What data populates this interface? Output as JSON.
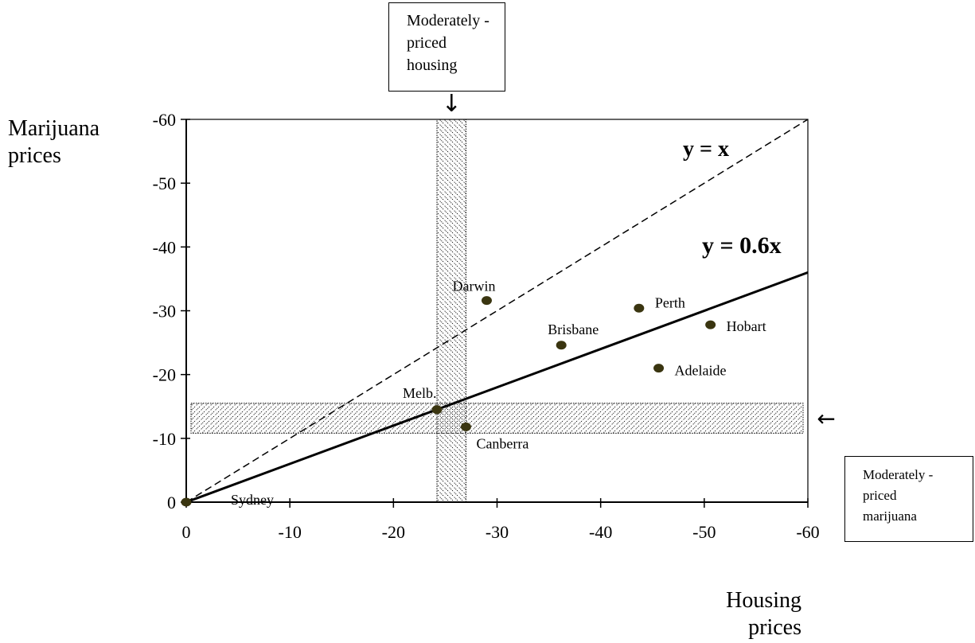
{
  "chart_data": {
    "type": "scatter",
    "y_axis_title": "Marijuana\nprices",
    "x_axis_title": "Housing\nprices",
    "xlim": [
      0,
      -60
    ],
    "ylim": [
      0,
      -60
    ],
    "x_ticks": [
      0,
      -10,
      -20,
      -30,
      -40,
      -50,
      -60
    ],
    "y_ticks": [
      0,
      -10,
      -20,
      -30,
      -40,
      -50,
      -60
    ],
    "x_tick_labels": [
      "0",
      "-10",
      "-20",
      "-30",
      "-40",
      "-50",
      "-60"
    ],
    "y_tick_labels": [
      "0",
      "-10",
      "-20",
      "-30",
      "-40",
      "-50",
      "-60"
    ],
    "points": [
      {
        "label": "Sydney",
        "x": 0,
        "y": 0
      },
      {
        "label": "Melb.",
        "x": -24.2,
        "y": -14.5
      },
      {
        "label": "Canberra",
        "x": -27,
        "y": -11.8
      },
      {
        "label": "Darwin",
        "x": -29,
        "y": -31.6
      },
      {
        "label": "Brisbane",
        "x": -36.2,
        "y": -24.6
      },
      {
        "label": "Perth",
        "x": -43.7,
        "y": -30.4
      },
      {
        "label": "Hobart",
        "x": -50.6,
        "y": -27.8
      },
      {
        "label": "Adelaide",
        "x": -45.6,
        "y": -21
      }
    ],
    "lines": [
      {
        "label": "y = x",
        "slope": 1,
        "style": "dashed"
      },
      {
        "label": "y = 0.6x",
        "slope": 0.6,
        "style": "solid"
      }
    ],
    "bands": [
      {
        "label": "Moderately -\npriced\nhousing",
        "axis": "x",
        "range": [
          -24.2,
          -27
        ],
        "arrow": "↓"
      },
      {
        "label": "Moderately -\npriced\nmarijuana",
        "axis": "y",
        "range": [
          -10.8,
          -15.5
        ],
        "arrow": "←"
      }
    ],
    "grid": false,
    "colors": {
      "point": "#3a3510",
      "line": "#000000"
    }
  }
}
